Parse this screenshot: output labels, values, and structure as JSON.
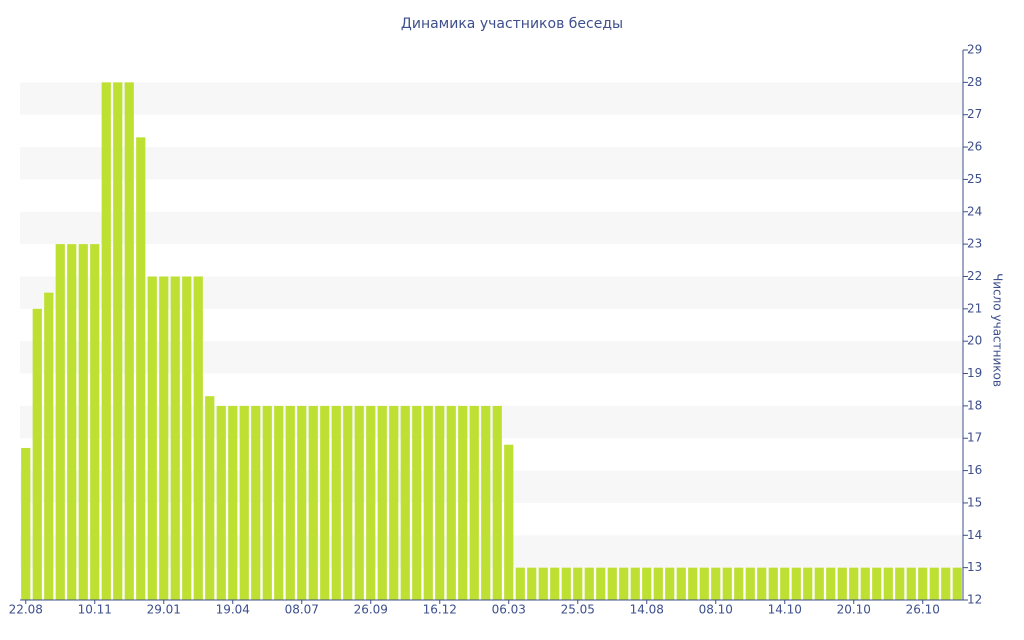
{
  "chart_data": {
    "type": "bar",
    "title": "Динамика участников беседы",
    "ylabel": "Число участников",
    "categories": [
      "22.08",
      null,
      null,
      null,
      null,
      null,
      "10.11",
      null,
      null,
      null,
      null,
      null,
      "29.01",
      null,
      null,
      null,
      null,
      null,
      "19.04",
      null,
      null,
      null,
      null,
      null,
      "08.07",
      null,
      null,
      null,
      null,
      null,
      "26.09",
      null,
      null,
      null,
      null,
      null,
      "16.12",
      null,
      null,
      null,
      null,
      null,
      "06.03",
      null,
      null,
      null,
      null,
      null,
      "25.05",
      null,
      null,
      null,
      null,
      null,
      "14.08",
      null,
      null,
      null,
      null,
      null,
      "08.10",
      null,
      null,
      null,
      null,
      null,
      "14.10",
      null,
      null,
      null,
      null,
      null,
      "20.10",
      null,
      null,
      null,
      null,
      null,
      "26.10",
      null,
      null,
      null
    ],
    "values": [
      16.7,
      21,
      21.5,
      23,
      23,
      23,
      23,
      28,
      28,
      28,
      26.3,
      22,
      22,
      22,
      22,
      22,
      18.3,
      18,
      18,
      18,
      18,
      18,
      18,
      18,
      18,
      18,
      18,
      18,
      18,
      18,
      18,
      18,
      18,
      18,
      18,
      18,
      18,
      18,
      18,
      18,
      18,
      18,
      16.8,
      13,
      13,
      13,
      13,
      13,
      13,
      13,
      13,
      13,
      13,
      13,
      13,
      13,
      13,
      13,
      13,
      13,
      13,
      13,
      13,
      13,
      13,
      13,
      13,
      13,
      13,
      13,
      13,
      13,
      13,
      13,
      13,
      13,
      13,
      13,
      13,
      13,
      13,
      13
    ],
    "color": "#bde032",
    "ylim": [
      12,
      29
    ],
    "yticks": [
      12,
      13,
      14,
      15,
      16,
      17,
      18,
      19,
      20,
      21,
      22,
      23,
      24,
      25,
      26,
      27,
      28,
      29
    ],
    "grid": true,
    "y_axis_side": "right"
  }
}
